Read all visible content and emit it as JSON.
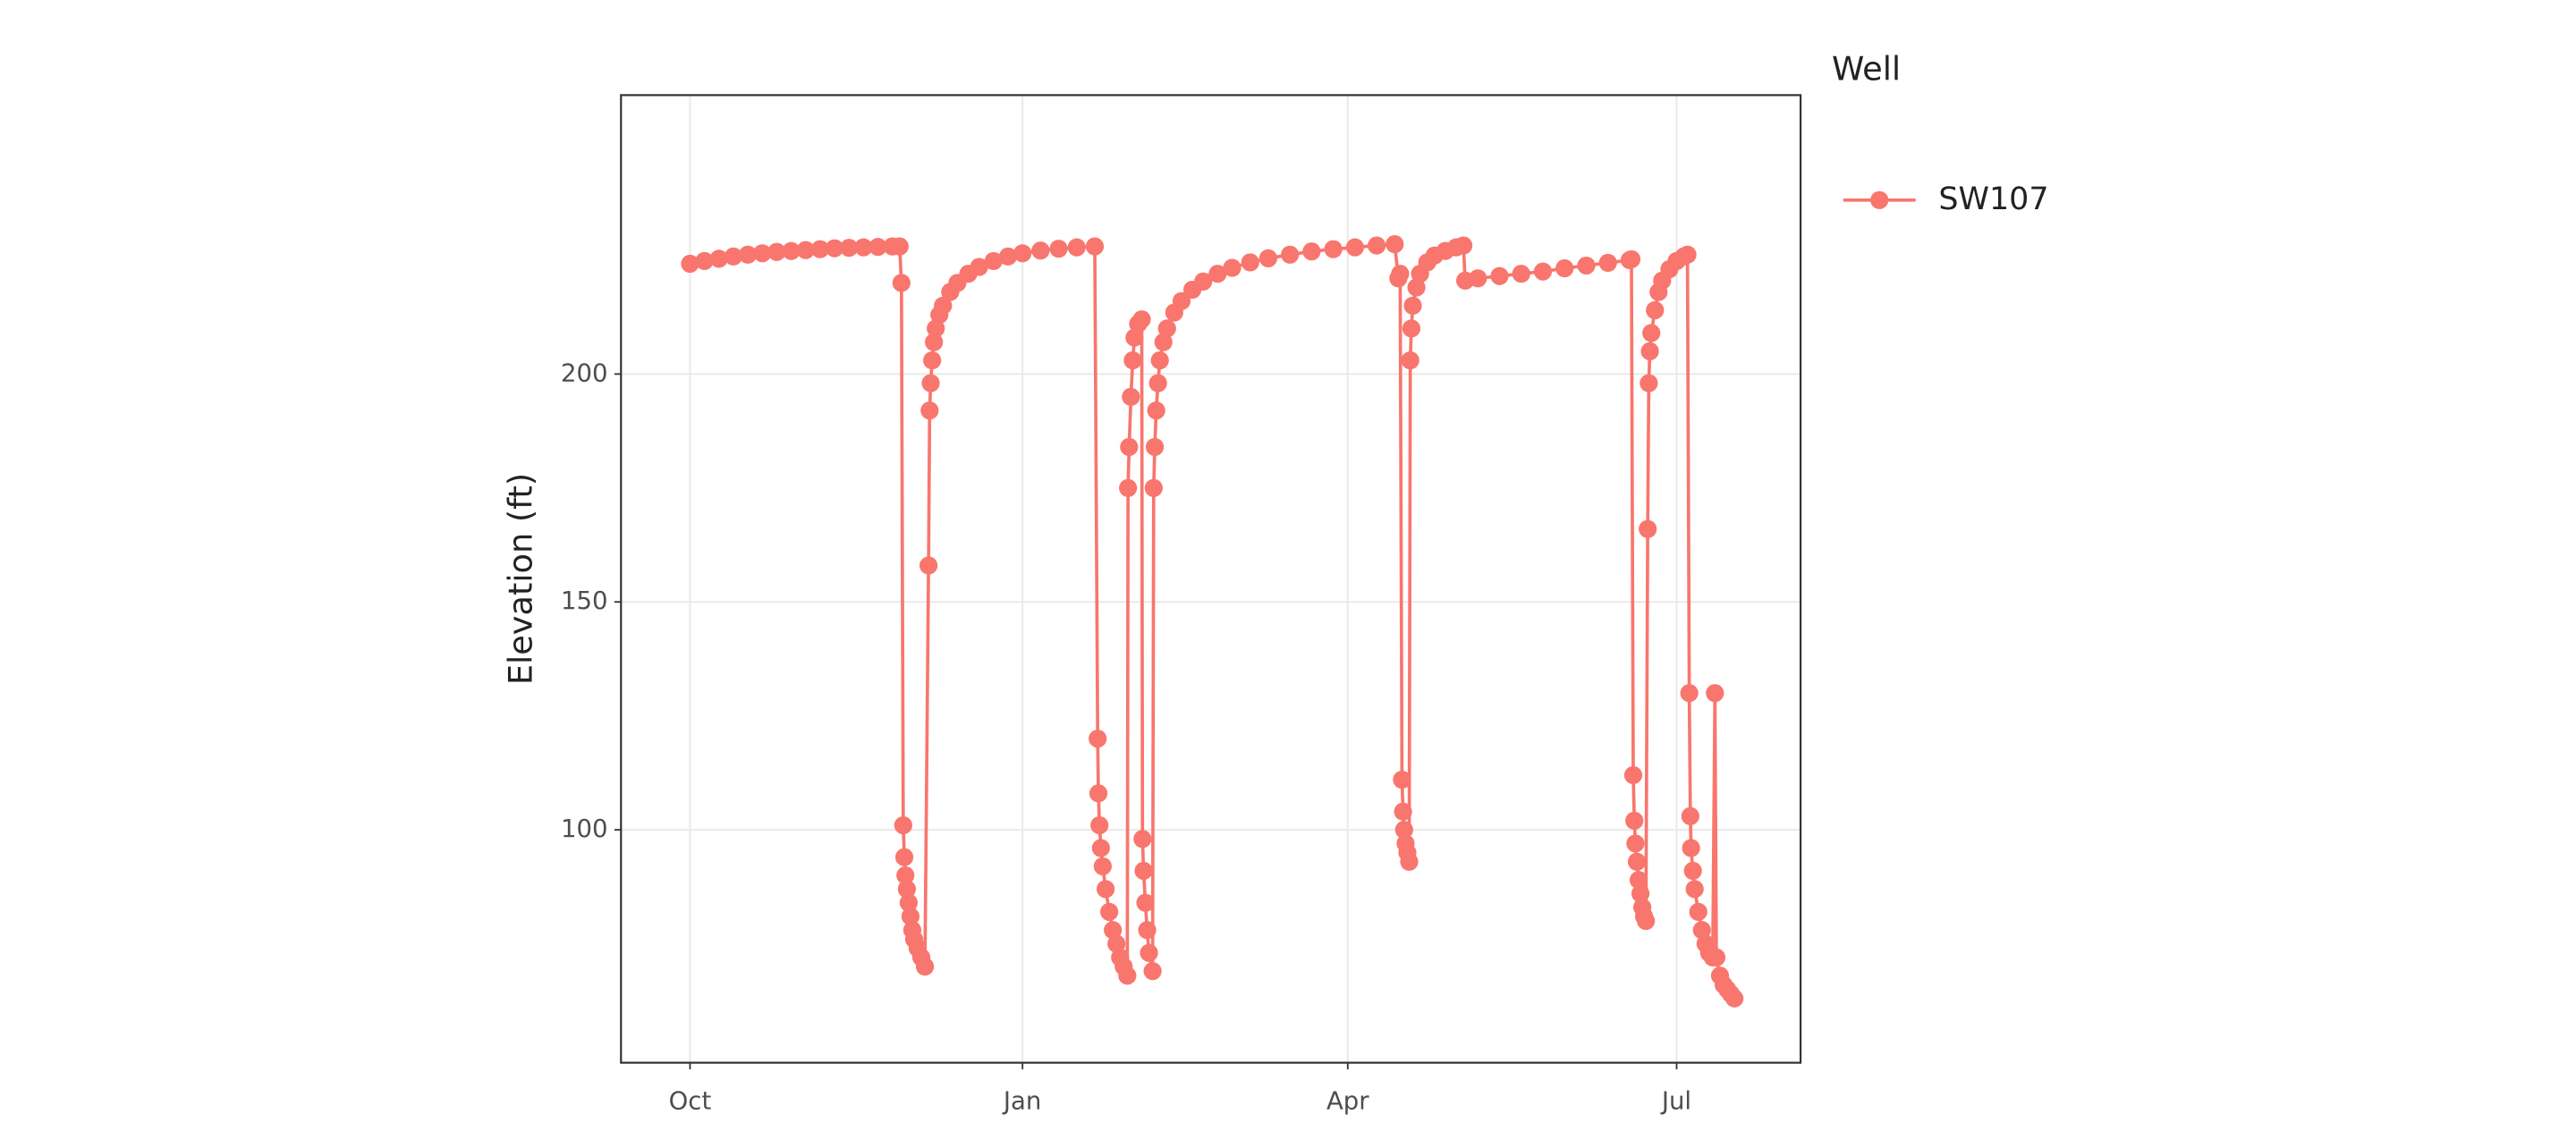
{
  "chart_data": {
    "type": "line",
    "y_label": "Elevation (ft)",
    "legend_title": "Well",
    "legend": "right",
    "markers": true,
    "grid": true,
    "x": [
      0,
      4,
      8,
      12,
      16,
      20,
      24,
      28,
      32,
      36,
      40,
      44,
      48,
      52,
      56,
      58,
      58.5,
      59,
      59.3,
      59.6,
      60,
      60.5,
      61,
      61.5,
      62,
      63,
      64,
      65,
      66,
      66.3,
      66.6,
      67,
      67.5,
      68,
      69,
      70,
      72,
      74,
      77,
      80,
      84,
      88,
      92,
      97,
      102,
      107,
      112,
      112.8,
      113,
      113.3,
      113.7,
      114.2,
      115,
      116,
      117,
      118,
      119,
      120,
      121,
      121.2,
      121.5,
      122,
      122.5,
      123,
      124,
      125,
      125.2,
      125.5,
      126,
      126.5,
      127,
      128,
      128.3,
      128.6,
      129,
      129.5,
      130,
      131,
      132,
      134,
      136,
      139,
      142,
      146,
      150,
      155,
      160,
      166,
      172,
      178,
      184,
      190,
      195,
      196,
      196.5,
      197,
      197.3,
      197.6,
      198,
      198.5,
      199,
      199.3,
      199.6,
      200,
      201,
      202,
      204,
      206,
      209,
      212,
      214,
      214.5,
      218,
      224,
      230,
      236,
      242,
      248,
      254,
      260,
      260.5,
      261,
      261.3,
      261.6,
      262,
      262.5,
      263,
      263.5,
      264,
      264.5,
      265,
      265.3,
      265.6,
      266,
      267,
      268,
      269,
      271,
      273,
      275,
      276,
      276.5,
      276.8,
      277,
      277.5,
      278,
      279,
      280,
      281,
      282,
      283,
      283.6,
      284,
      285,
      286,
      287,
      288,
      289
    ],
    "series": [
      {
        "name": "SW107",
        "color": "#F8766D",
        "values": [
          224.2,
          224.8,
          225.3,
          225.8,
          226.2,
          226.5,
          226.8,
          227.0,
          227.2,
          227.4,
          227.6,
          227.7,
          227.8,
          227.9,
          228.0,
          228.0,
          220,
          101,
          94,
          90,
          87,
          84,
          81,
          78,
          76,
          74,
          72,
          70,
          158,
          192,
          198,
          203,
          207,
          210,
          213,
          215,
          218,
          220,
          222,
          223.5,
          224.8,
          225.8,
          226.5,
          227.1,
          227.5,
          227.8,
          228.0,
          120,
          108,
          101,
          96,
          92,
          87,
          82,
          78,
          75,
          72,
          70,
          68,
          175,
          184,
          195,
          203,
          208,
          211,
          212,
          98,
          91,
          84,
          78,
          73,
          69,
          175,
          184,
          192,
          198,
          203,
          207,
          210,
          213.5,
          216,
          218.5,
          220.3,
          222,
          223.3,
          224.5,
          225.4,
          226.2,
          226.9,
          227.4,
          227.8,
          228.2,
          228.5,
          221,
          222,
          111,
          104,
          100,
          97,
          95,
          93,
          203,
          210,
          215,
          219,
          222,
          224.5,
          226,
          227,
          227.8,
          228.2,
          220.5,
          221,
          221.5,
          222,
          222.5,
          223.2,
          223.8,
          224.4,
          225,
          225.2,
          112,
          102,
          97,
          93,
          89,
          86,
          83,
          81,
          80,
          166,
          198,
          205,
          209,
          214,
          218,
          220.5,
          223,
          224.8,
          225.8,
          226.2,
          130,
          103,
          96,
          91,
          87,
          82,
          78,
          75,
          73,
          72,
          130,
          72,
          68,
          66,
          65,
          64,
          63
        ]
      }
    ],
    "xlim": [
      -19.1,
      307.3
    ],
    "xticks": [
      {
        "value": 0,
        "label": "Oct"
      },
      {
        "value": 92,
        "label": "Jan"
      },
      {
        "value": 182,
        "label": "Apr"
      },
      {
        "value": 273,
        "label": "Jul"
      }
    ],
    "ylim": [
      48.9,
      261.2
    ],
    "yticks": [
      100,
      150,
      200
    ]
  }
}
